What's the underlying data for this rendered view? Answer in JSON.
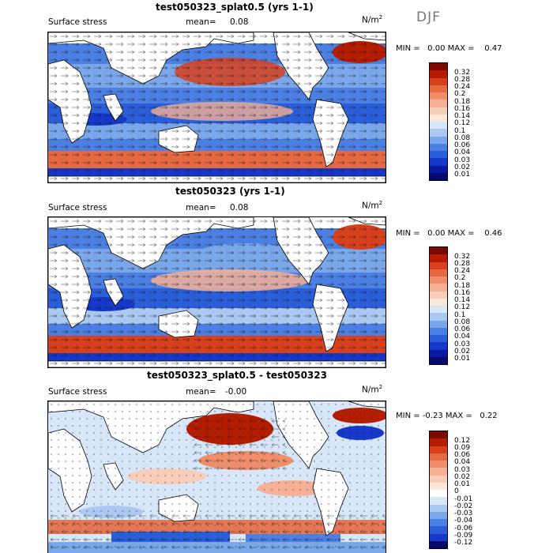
{
  "season": "DJF",
  "panels": [
    {
      "title": "test050323_splat0.5 (yrs 1-1)",
      "variable": "Surface stress",
      "mean_label": "mean=",
      "mean_value": "0.08",
      "units_base": "N/m",
      "units_exp": "2",
      "min_label": "MIN =",
      "min_value": "0.00",
      "max_label": "MAX =",
      "max_value": "0.47",
      "colorbar_levels": [
        "0.32",
        "0.28",
        "0.24",
        "0.2",
        "0.18",
        "0.16",
        "0.14",
        "0.12",
        "0.1",
        "0.08",
        "0.06",
        "0.04",
        "0.03",
        "0.02",
        "0.01"
      ]
    },
    {
      "title": "test050323 (yrs 1-1)",
      "variable": "Surface stress",
      "mean_label": "mean=",
      "mean_value": "0.08",
      "units_base": "N/m",
      "units_exp": "2",
      "min_label": "MIN =",
      "min_value": "0.00",
      "max_label": "MAX =",
      "max_value": "0.46",
      "colorbar_levels": [
        "0.32",
        "0.28",
        "0.24",
        "0.2",
        "0.18",
        "0.16",
        "0.14",
        "0.12",
        "0.1",
        "0.08",
        "0.06",
        "0.04",
        "0.03",
        "0.02",
        "0.01"
      ]
    },
    {
      "title": "test050323_splat0.5 - test050323",
      "variable": "Surface stress",
      "mean_label": "mean=",
      "mean_value": "-0.00",
      "units_base": "N/m",
      "units_exp": "2",
      "min_label": "MIN =",
      "min_value": "-0.23",
      "max_label": "MAX =",
      "max_value": "0.22",
      "colorbar_levels": [
        "0.12",
        "0.09",
        "0.06",
        "0.04",
        "0.03",
        "0.02",
        "0.01",
        "0",
        "-0.01",
        "-0.02",
        "-0.03",
        "-0.04",
        "-0.06",
        "-0.09",
        "-0.12"
      ]
    }
  ],
  "colors": {
    "abs_scale": [
      "#7a0a00",
      "#b51d00",
      "#d7401c",
      "#e56a42",
      "#ef8e6b",
      "#f5b096",
      "#f8cdb9",
      "#fbe8da",
      "#d7e6f8",
      "#aac8f0",
      "#7aa6ea",
      "#4b7fe2",
      "#2a5ed8",
      "#1638c8",
      "#0a1aa0",
      "#060a6c"
    ],
    "diff_scale": [
      "#7a0a00",
      "#b51d00",
      "#d7401c",
      "#e56a42",
      "#ef8e6b",
      "#f5b096",
      "#f8cdb9",
      "#fbe8da",
      "#ffffff",
      "#d7e6f8",
      "#aac8f0",
      "#7aa6ea",
      "#4b7fe2",
      "#2a5ed8",
      "#1638c8",
      "#060a6c"
    ]
  }
}
